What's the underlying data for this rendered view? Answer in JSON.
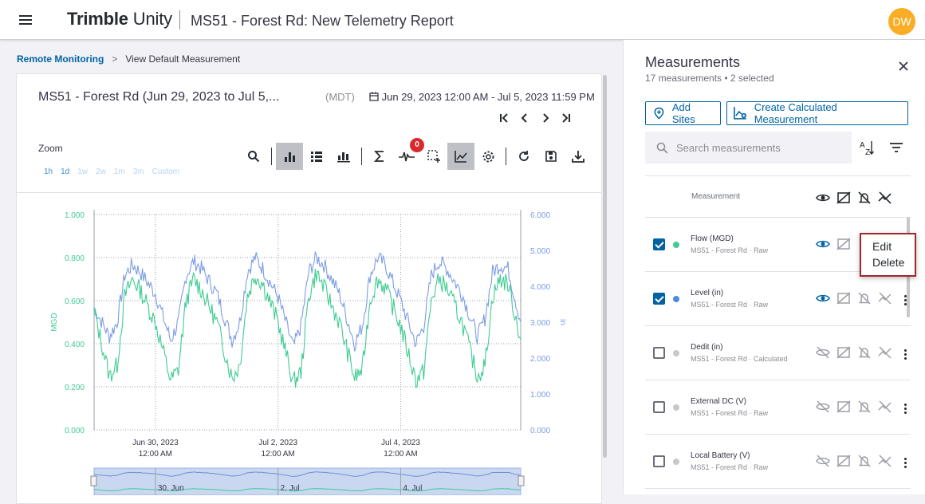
{
  "header": {
    "brand_bold": "Trimble",
    "brand_light": "Unity",
    "title": "MS51 - Forest Rd: New Telemetry Report",
    "avatar_initials": "DW",
    "menu_icon": "hamburger-icon"
  },
  "breadcrumb": {
    "link": "Remote Monitoring",
    "separator": ">",
    "current": "View Default Measurement"
  },
  "chart_card": {
    "title": "MS51 - Forest Rd (Jun 29, 2023 to Jul 5,...",
    "timezone": "(MDT)",
    "date_range": "Jun 29, 2023 12:00 AM - Jul 5, 2023 11:59 PM",
    "nav": {
      "first": "|<",
      "prev": "<",
      "next": ">",
      "last": ">|"
    },
    "zoom_label": "Zoom",
    "zoom_options": [
      "1h",
      "1d",
      "1w",
      "2w",
      "1m",
      "3m",
      "Custom"
    ],
    "anomaly_count": "0",
    "toolbar_icons": [
      "search-icon",
      "bar-chart-icon",
      "list-icon",
      "column-chart-icon",
      "sum-icon",
      "anomaly-icon",
      "select-region-icon",
      "line-chart-icon",
      "settings-icon",
      "refresh-icon",
      "save-icon",
      "download-icon"
    ]
  },
  "chart_data": {
    "type": "line",
    "xlabel": "",
    "ylabel": "MGD",
    "y2label": "in",
    "ylim": [
      0,
      1.0
    ],
    "y2lim": [
      0,
      6.0
    ],
    "yticks": [
      "1.000",
      "0.800",
      "0.600",
      "0.400",
      "0.200",
      "0.000"
    ],
    "y2ticks": [
      "6.000",
      "5.000",
      "4.000",
      "3.000",
      "2.000",
      "1.000",
      "0.000"
    ],
    "x_ticks": [
      {
        "date": "Jun 30, 2023",
        "time": "12:00 AM"
      },
      {
        "date": "Jul 2, 2023",
        "time": "12:00 AM"
      },
      {
        "date": "Jul 4, 2023",
        "time": "12:00 AM"
      }
    ],
    "navigator_ticks": [
      "30. Jun",
      "2. Jul",
      "4. Jul"
    ],
    "series": [
      {
        "name": "Flow (MGD)",
        "color": "#3fcc92",
        "axis": "left",
        "x_hours": [
          0,
          6,
          9,
          12,
          15,
          18,
          24,
          30,
          33,
          36,
          39,
          42,
          48,
          54,
          57,
          60,
          63,
          66,
          72,
          78,
          81,
          84,
          87,
          90,
          96,
          102,
          105,
          108,
          111,
          114,
          120,
          126,
          129,
          132,
          135,
          138,
          144,
          150,
          153,
          156,
          159,
          162,
          167
        ],
        "values": [
          0.55,
          0.25,
          0.3,
          0.62,
          0.7,
          0.65,
          0.5,
          0.23,
          0.28,
          0.6,
          0.7,
          0.65,
          0.5,
          0.24,
          0.3,
          0.62,
          0.72,
          0.68,
          0.5,
          0.22,
          0.27,
          0.62,
          0.73,
          0.66,
          0.5,
          0.24,
          0.28,
          0.6,
          0.7,
          0.66,
          0.48,
          0.23,
          0.27,
          0.6,
          0.7,
          0.66,
          0.5,
          0.25,
          0.3,
          0.62,
          0.7,
          0.68,
          0.42
        ]
      },
      {
        "name": "Level (in)",
        "color": "#7b9ce6",
        "axis": "right",
        "x_hours": [
          0,
          6,
          9,
          12,
          15,
          18,
          24,
          30,
          33,
          36,
          39,
          42,
          48,
          54,
          57,
          60,
          63,
          66,
          72,
          78,
          81,
          84,
          87,
          90,
          96,
          102,
          105,
          108,
          111,
          114,
          120,
          126,
          129,
          132,
          135,
          138,
          144,
          150,
          153,
          156,
          159,
          162,
          167
        ],
        "values": [
          3.4,
          2.6,
          3.0,
          4.3,
          4.6,
          4.4,
          3.8,
          2.5,
          3.0,
          4.3,
          4.7,
          4.5,
          3.8,
          2.5,
          3.0,
          4.4,
          4.8,
          4.5,
          3.7,
          2.3,
          2.9,
          4.4,
          4.8,
          4.6,
          3.8,
          2.4,
          2.9,
          4.3,
          4.8,
          4.6,
          3.6,
          2.4,
          2.9,
          4.3,
          4.7,
          4.5,
          3.8,
          2.6,
          3.1,
          4.4,
          4.6,
          4.5,
          3.0
        ]
      }
    ],
    "grid": true
  },
  "panel": {
    "title": "Measurements",
    "subtitle": "17 measurements • 2 selected",
    "add_sites": "Add Sites",
    "create_calc": "Create Calculated Measurement",
    "search_placeholder": "Search measurements",
    "column_header": "Measurement",
    "items": [
      {
        "name": "Flow (MGD)",
        "sub": "MS51 - Forest Rd · Raw",
        "checked": true,
        "dot": "#3fcc92",
        "visible": true
      },
      {
        "name": "Level (in)",
        "sub": "MS51 - Forest Rd · Raw",
        "checked": true,
        "dot": "#4d8be0",
        "visible": true
      },
      {
        "name": "Dedit (in)",
        "sub": "MS51 - Forest Rd · Calculated",
        "checked": false,
        "dot": "#c7c7cc",
        "visible": false
      },
      {
        "name": "External DC (V)",
        "sub": "MS51 - Forest Rd · Raw",
        "checked": false,
        "dot": "#c7c7cc",
        "visible": false
      },
      {
        "name": "Local Battery (V)",
        "sub": "MS51 - Forest Rd · Raw",
        "checked": false,
        "dot": "#c7c7cc",
        "visible": false
      }
    ]
  },
  "context_menu": {
    "edit": "Edit",
    "delete": "Delete"
  }
}
